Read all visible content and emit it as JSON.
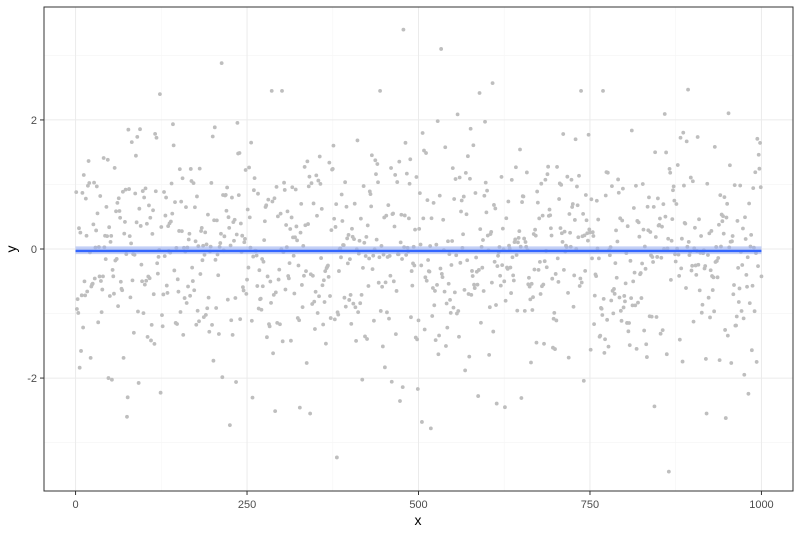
{
  "chart_data": {
    "type": "scatter",
    "xlabel": "x",
    "ylabel": "y",
    "xlim": [
      -46,
      1046
    ],
    "ylim": [
      -3.75,
      3.75
    ],
    "x_ticks": [
      0,
      250,
      500,
      750,
      1000
    ],
    "x_tick_labels": [
      "0",
      "250",
      "500",
      "750",
      "1000"
    ],
    "y_ticks": [
      -2,
      0,
      2
    ],
    "y_tick_labels": [
      "-2",
      "0",
      "2"
    ],
    "grid": true,
    "legend": "none",
    "colors": {
      "points": "#bebebe",
      "fit_line": "#3366ff",
      "ribbon": "#9db0f0",
      "grid_major": "#ebebeb",
      "grid_minor": "#f5f5f5",
      "panel_border": "#333333"
    },
    "series": [
      {
        "type": "scatter",
        "values_description": "1000 points, x = 1..1000, y ~ approximately standard normal noise",
        "x_range": [
          1,
          1000
        ],
        "y_mean": 0,
        "y_sd": 1,
        "y_min": -3.45,
        "y_max": 3.4,
        "highlighted_points": [
          {
            "x": 478,
            "y": 3.4
          },
          {
            "x": 533,
            "y": 3.1
          },
          {
            "x": 213,
            "y": 2.88
          },
          {
            "x": 608,
            "y": 2.57
          },
          {
            "x": 893,
            "y": 2.47
          },
          {
            "x": 381,
            "y": -3.23
          },
          {
            "x": 505,
            "y": -2.68
          },
          {
            "x": 518,
            "y": -2.78
          },
          {
            "x": 225,
            "y": -2.73
          },
          {
            "x": 865,
            "y": -3.45
          },
          {
            "x": 948,
            "y": -2.62
          },
          {
            "x": 8,
            "y": -1.58
          },
          {
            "x": 48,
            "y": -2.0
          },
          {
            "x": 75,
            "y": -2.6
          }
        ]
      },
      {
        "type": "line",
        "name": "",
        "smoother": "linear fit with confidence band",
        "x": [
          0,
          1000
        ],
        "y": [
          -0.03,
          -0.03
        ],
        "ci_lower": [
          -0.08,
          -0.08
        ],
        "ci_upper": [
          0.04,
          0.04
        ]
      }
    ]
  }
}
